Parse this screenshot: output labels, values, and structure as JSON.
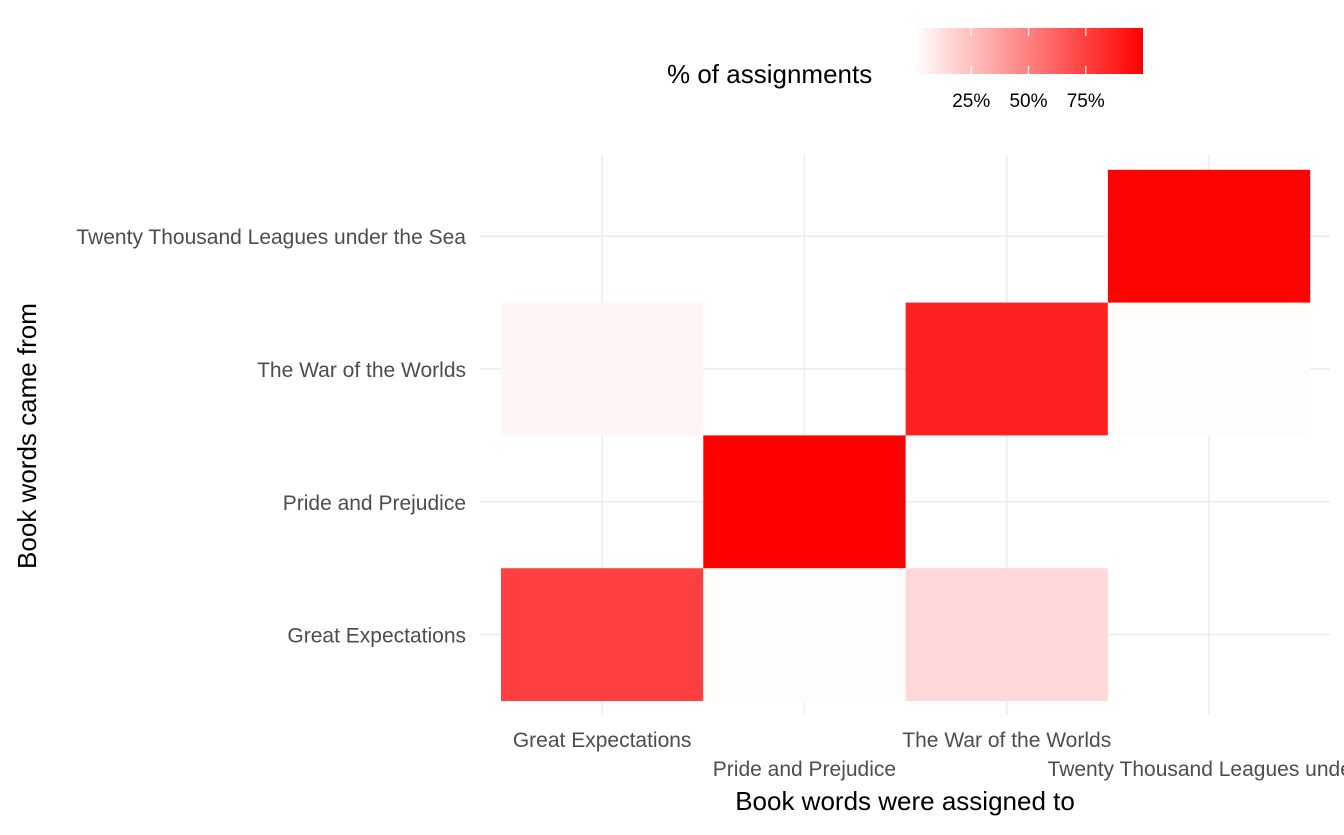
{
  "chart_data": {
    "type": "heatmap",
    "title": "",
    "xlabel": "Book words were assigned to",
    "ylabel": "Book words came from",
    "x_categories": [
      "Great Expectations",
      "Pride and Prejudice",
      "The War of the Worlds",
      "Twenty Thousand Leagues under the Sea"
    ],
    "y_categories": [
      "Great Expectations",
      "Pride and Prejudice",
      "The War of the Worlds",
      "Twenty Thousand Leagues under the Sea"
    ],
    "x_tick_labels": [
      "Great Expectations",
      "Pride and Prejudice",
      "The War of the Worlds",
      "Twenty Thousand Leagues under t"
    ],
    "cells": [
      {
        "x": "Great Expectations",
        "y": "Great Expectations",
        "value": 0.75
      },
      {
        "x": "Pride and Prejudice",
        "y": "Great Expectations",
        "value": 0.01
      },
      {
        "x": "The War of the Worlds",
        "y": "Great Expectations",
        "value": 0.15
      },
      {
        "x": "Pride and Prejudice",
        "y": "Pride and Prejudice",
        "value": 1.0
      },
      {
        "x": "Great Expectations",
        "y": "The War of the Worlds",
        "value": 0.04
      },
      {
        "x": "The War of the Worlds",
        "y": "The War of the Worlds",
        "value": 0.87
      },
      {
        "x": "Twenty Thousand Leagues under the Sea",
        "y": "The War of the Worlds",
        "value": 0.01
      },
      {
        "x": "Twenty Thousand Leagues under the Sea",
        "y": "Twenty Thousand Leagues under the Sea",
        "value": 0.99
      }
    ],
    "legend": {
      "title": "% of assignments",
      "position": "top",
      "range": [
        0,
        1
      ],
      "breaks": [
        0.25,
        0.5,
        0.75
      ],
      "labels": [
        "25%",
        "50%",
        "75%"
      ],
      "low_color": "#ffffff",
      "high_color": "#ff0000"
    },
    "grid": true,
    "colors": {
      "grid": "#ebebeb",
      "axis_text": "#4d4d4d",
      "title_text": "#000000"
    }
  }
}
